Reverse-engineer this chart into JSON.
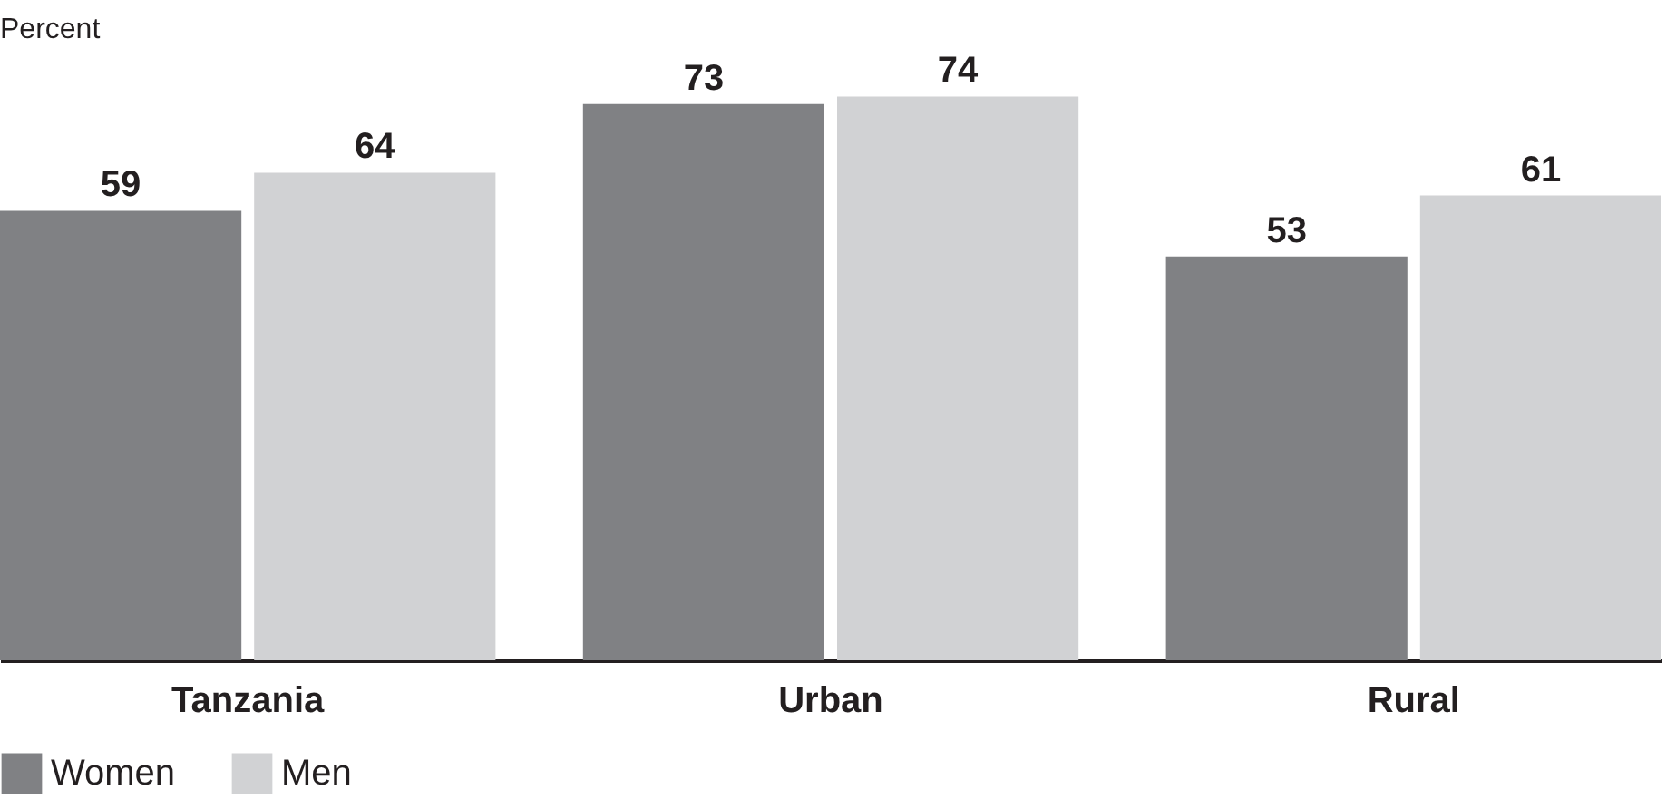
{
  "chart_data": {
    "type": "bar",
    "ylabel": "Percent",
    "categories": [
      "Tanzania",
      "Urban",
      "Rural"
    ],
    "series": [
      {
        "name": "Women",
        "color": "#808184",
        "values": [
          59,
          73,
          53
        ]
      },
      {
        "name": "Men",
        "color": "#d1d2d4",
        "values": [
          64,
          74,
          61
        ]
      }
    ],
    "data_labels": true,
    "legend": "bottom",
    "grid": false
  }
}
